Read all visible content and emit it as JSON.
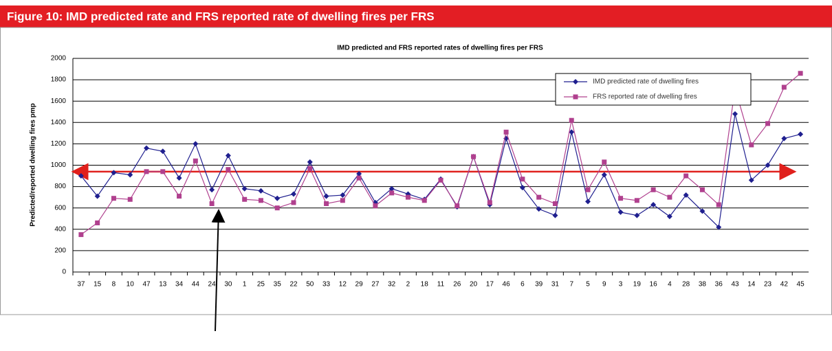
{
  "header": {
    "title": "Figure 10: IMD predicted rate and FRS reported rate of dwelling fires per FRS"
  },
  "chart_data": {
    "type": "line",
    "title": "IMD predicted and FRS reported rates of dwelling fires per FRS",
    "y_label": "Predicted/reported dwelling fires pmp",
    "categories": [
      "37",
      "15",
      "8",
      "10",
      "47",
      "13",
      "34",
      "44",
      "24",
      "30",
      "1",
      "25",
      "35",
      "22",
      "50",
      "33",
      "12",
      "29",
      "27",
      "32",
      "2",
      "18",
      "11",
      "26",
      "20",
      "17",
      "46",
      "6",
      "39",
      "31",
      "7",
      "5",
      "9",
      "3",
      "19",
      "16",
      "4",
      "28",
      "38",
      "36",
      "43",
      "14",
      "23",
      "42",
      "45"
    ],
    "series": [
      {
        "name": "IMD predicted rate of dwelling fires",
        "color": "#1f1f8f",
        "marker": "diamond",
        "values": [
          900,
          710,
          930,
          910,
          1160,
          1130,
          880,
          1200,
          770,
          1090,
          780,
          760,
          690,
          730,
          1030,
          710,
          720,
          920,
          650,
          780,
          730,
          680,
          870,
          610,
          1080,
          630,
          1250,
          790,
          590,
          530,
          1310,
          660,
          910,
          560,
          530,
          630,
          520,
          720,
          570,
          420,
          1480,
          860,
          1000,
          1250,
          1290
        ]
      },
      {
        "name": "FRS reported rate of dwelling fires",
        "color": "#b0408e",
        "marker": "square",
        "values": [
          350,
          460,
          690,
          680,
          940,
          940,
          710,
          1040,
          640,
          960,
          680,
          670,
          600,
          650,
          970,
          640,
          670,
          880,
          620,
          740,
          700,
          670,
          860,
          620,
          1080,
          650,
          1310,
          870,
          700,
          640,
          1420,
          770,
          1030,
          690,
          670,
          770,
          700,
          900,
          770,
          630,
          1720,
          1190,
          1390,
          1730,
          1860
        ]
      }
    ],
    "ylim": [
      0,
      2000
    ],
    "yticks": [
      0,
      200,
      400,
      600,
      800,
      1000,
      1200,
      1400,
      1600,
      1800,
      2000
    ],
    "grid": true,
    "reference_value": 940,
    "reference_color": "#e0201c",
    "legend": "upper right"
  }
}
